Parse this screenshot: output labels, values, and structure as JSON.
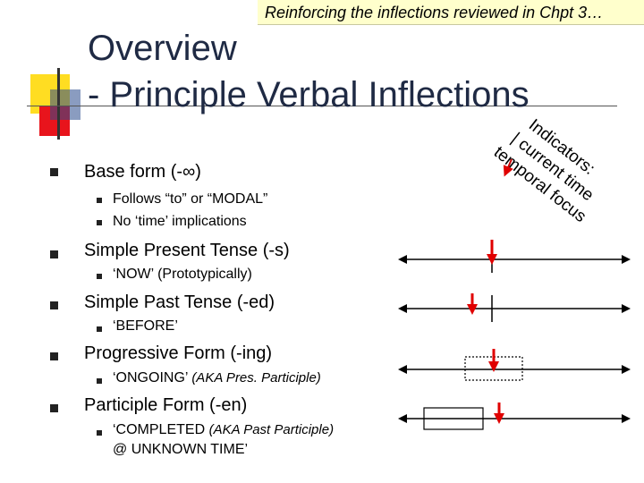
{
  "header": {
    "banner": "Reinforcing the inflections reviewed in Chpt 3…",
    "title_line1": "Overview",
    "title_line2": "- Principle Verbal Inflections"
  },
  "colors": {
    "title": "#1f2a44",
    "accent_yellow": "#ffdd22",
    "accent_red": "#e8141c",
    "accent_blue": "#2a4a8c",
    "banner_bg": "#ffffcc",
    "arrow_red": "#cc0000"
  },
  "bullets": [
    {
      "label": "Base form  (-∞)",
      "sub": [
        {
          "text": "Follows “to” or “MODAL”"
        },
        {
          "text": "No ‘time’ implications"
        }
      ]
    },
    {
      "label": "Simple Present Tense (-s)",
      "sub": [
        {
          "text": "‘NOW’ (Prototypically)"
        }
      ]
    },
    {
      "label": "Simple Past Tense (-ed)",
      "sub": [
        {
          "text": "‘BEFORE’"
        }
      ]
    },
    {
      "label": "Progressive Form (-ing)",
      "sub": [
        {
          "text": "‘ONGOING’",
          "note": "(AKA Pres. Participle)"
        }
      ]
    },
    {
      "label": "Participle Form (-en)",
      "sub": [
        {
          "text": "‘COMPLETED",
          "note": "(AKA Past Participle)",
          "line2": "@ UNKNOWN TIME’"
        }
      ]
    }
  ],
  "annotation": {
    "line1": "Indicators:",
    "line2": "| current time",
    "line3": "temporal focus"
  }
}
